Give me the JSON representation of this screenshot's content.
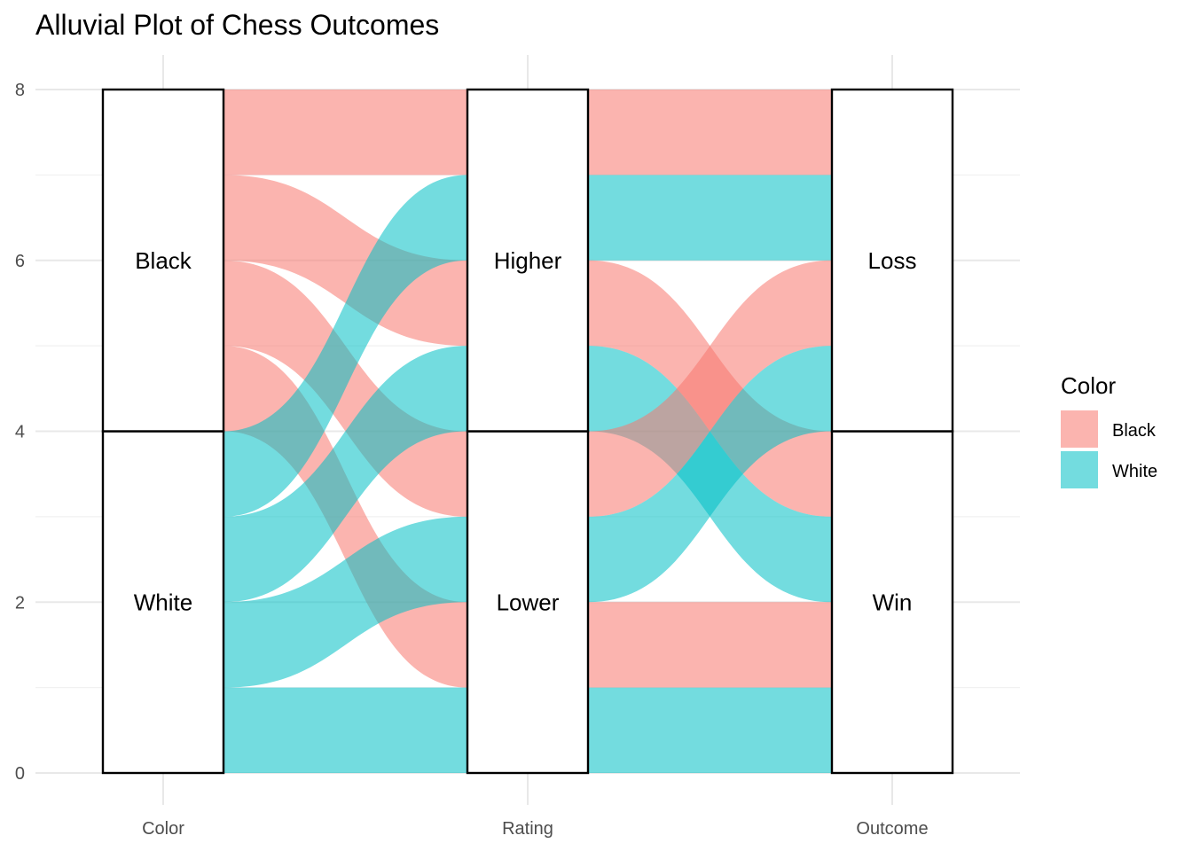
{
  "chart_data": {
    "type": "alluvial",
    "title": "Alluvial Plot of Chess Outcomes",
    "axes": [
      "Color",
      "Rating",
      "Outcome"
    ],
    "ylim": [
      0,
      8
    ],
    "y_ticks": [
      0,
      2,
      4,
      6,
      8
    ],
    "grid": true,
    "strata": [
      [
        {
          "label": "White",
          "y0": 0,
          "y1": 4
        },
        {
          "label": "Black",
          "y0": 4,
          "y1": 8
        }
      ],
      [
        {
          "label": "Lower",
          "y0": 0,
          "y1": 4
        },
        {
          "label": "Higher",
          "y0": 4,
          "y1": 8
        }
      ],
      [
        {
          "label": "Win",
          "y0": 0,
          "y1": 4
        },
        {
          "label": "Loss",
          "y0": 4,
          "y1": 8
        }
      ]
    ],
    "flows": [
      {
        "color": "Black",
        "rating": "Higher",
        "outcome": "Loss",
        "count": 1
      },
      {
        "color": "Black",
        "rating": "Higher",
        "outcome": "Win",
        "count": 1
      },
      {
        "color": "Black",
        "rating": "Lower",
        "outcome": "Loss",
        "count": 1
      },
      {
        "color": "Black",
        "rating": "Lower",
        "outcome": "Win",
        "count": 1
      },
      {
        "color": "White",
        "rating": "Higher",
        "outcome": "Loss",
        "count": 1
      },
      {
        "color": "White",
        "rating": "Higher",
        "outcome": "Win",
        "count": 1
      },
      {
        "color": "White",
        "rating": "Lower",
        "outcome": "Loss",
        "count": 1
      },
      {
        "color": "White",
        "rating": "Lower",
        "outcome": "Win",
        "count": 1
      }
    ],
    "segments": [
      {
        "from": 0,
        "fill": "Black",
        "y0": [
          7,
          8
        ],
        "y1": [
          7,
          8
        ]
      },
      {
        "from": 0,
        "fill": "Black",
        "y0": [
          6,
          7
        ],
        "y1": [
          5,
          6
        ]
      },
      {
        "from": 0,
        "fill": "Black",
        "y0": [
          5,
          6
        ],
        "y1": [
          3,
          4
        ]
      },
      {
        "from": 0,
        "fill": "Black",
        "y0": [
          4,
          5
        ],
        "y1": [
          1,
          2
        ]
      },
      {
        "from": 0,
        "fill": "White",
        "y0": [
          3,
          4
        ],
        "y1": [
          6,
          7
        ]
      },
      {
        "from": 0,
        "fill": "White",
        "y0": [
          2,
          3
        ],
        "y1": [
          4,
          5
        ]
      },
      {
        "from": 0,
        "fill": "White",
        "y0": [
          1,
          2
        ],
        "y1": [
          2,
          3
        ]
      },
      {
        "from": 0,
        "fill": "White",
        "y0": [
          0,
          1
        ],
        "y1": [
          0,
          1
        ]
      },
      {
        "from": 1,
        "fill": "Black",
        "y0": [
          7,
          8
        ],
        "y1": [
          7,
          8
        ]
      },
      {
        "from": 1,
        "fill": "White",
        "y0": [
          6,
          7
        ],
        "y1": [
          6,
          7
        ]
      },
      {
        "from": 1,
        "fill": "Black",
        "y0": [
          5,
          6
        ],
        "y1": [
          3,
          4
        ]
      },
      {
        "from": 1,
        "fill": "White",
        "y0": [
          4,
          5
        ],
        "y1": [
          2,
          3
        ]
      },
      {
        "from": 1,
        "fill": "Black",
        "y0": [
          3,
          4
        ],
        "y1": [
          5,
          6
        ]
      },
      {
        "from": 1,
        "fill": "White",
        "y0": [
          2,
          3
        ],
        "y1": [
          4,
          5
        ]
      },
      {
        "from": 1,
        "fill": "Black",
        "y0": [
          1,
          2
        ],
        "y1": [
          1,
          2
        ]
      },
      {
        "from": 1,
        "fill": "White",
        "y0": [
          0,
          1
        ],
        "y1": [
          0,
          1
        ]
      }
    ],
    "legend": {
      "title": "Color",
      "position": "right",
      "items": [
        {
          "label": "Black",
          "color": "#f8766d"
        },
        {
          "label": "White",
          "color": "#00bfc4"
        }
      ]
    },
    "fill_opacity": 0.55
  }
}
